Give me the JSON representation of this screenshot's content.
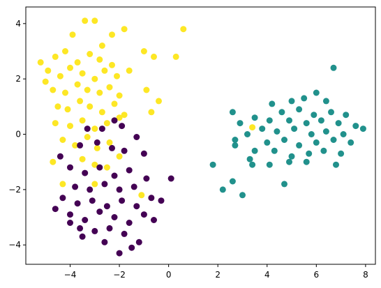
{
  "chart_data": {
    "type": "scatter",
    "title": "",
    "xlabel": "",
    "ylabel": "",
    "xlim": [
      -5.8,
      8.4
    ],
    "ylim": [
      -4.7,
      4.6
    ],
    "xticks": [
      -4,
      -2,
      0,
      2,
      4,
      6,
      8
    ],
    "yticks": [
      -4,
      -2,
      0,
      2,
      4
    ],
    "grid": false,
    "legend": "none",
    "series": [
      {
        "color": "#fde725",
        "points": [
          [
            -3.9,
            3.6
          ],
          [
            -3.4,
            4.1
          ],
          [
            -3.0,
            4.1
          ],
          [
            -2.7,
            3.2
          ],
          [
            -2.3,
            3.6
          ],
          [
            -1.8,
            3.8
          ],
          [
            -4.6,
            2.8
          ],
          [
            -4.2,
            3.0
          ],
          [
            -3.7,
            2.6
          ],
          [
            -3.2,
            2.9
          ],
          [
            -2.8,
            2.7
          ],
          [
            -2.3,
            2.5
          ],
          [
            -4.9,
            2.3
          ],
          [
            -4.4,
            2.1
          ],
          [
            -4.0,
            2.4
          ],
          [
            -3.5,
            2.2
          ],
          [
            -3.0,
            2.0
          ],
          [
            -2.6,
            2.3
          ],
          [
            -2.1,
            2.1
          ],
          [
            -1.6,
            2.3
          ],
          [
            -4.7,
            1.6
          ],
          [
            -4.2,
            1.5
          ],
          [
            -3.7,
            1.8
          ],
          [
            -3.3,
            1.6
          ],
          [
            -2.8,
            1.5
          ],
          [
            -2.4,
            1.7
          ],
          [
            -2.0,
            1.4
          ],
          [
            -4.5,
            1.0
          ],
          [
            -4.1,
            0.9
          ],
          [
            -3.6,
            1.2
          ],
          [
            -3.2,
            1.0
          ],
          [
            -2.7,
            0.8
          ],
          [
            -2.2,
            1.1
          ],
          [
            -1.8,
            0.7
          ],
          [
            -4.6,
            0.4
          ],
          [
            -4.0,
            0.3
          ],
          [
            -3.5,
            0.5
          ],
          [
            -3.0,
            0.2
          ],
          [
            -2.5,
            0.4
          ],
          [
            -2.0,
            0.6
          ],
          [
            -4.3,
            -0.2
          ],
          [
            -3.8,
            -0.4
          ],
          [
            -3.3,
            -0.1
          ],
          [
            -2.9,
            -0.5
          ],
          [
            -2.4,
            -0.3
          ],
          [
            -4.7,
            -1.0
          ],
          [
            -3.5,
            -0.9
          ],
          [
            -3.0,
            -1.1
          ],
          [
            -2.5,
            -1.2
          ],
          [
            -2.0,
            -0.8
          ],
          [
            -4.3,
            -1.8
          ],
          [
            -3.0,
            -1.8
          ],
          [
            -1.1,
            -2.2
          ],
          [
            -5.2,
            2.6
          ],
          [
            -5.0,
            1.9
          ],
          [
            -1.0,
            3.0
          ],
          [
            -0.6,
            2.8
          ],
          [
            -0.9,
            1.6
          ],
          [
            -0.4,
            1.2
          ],
          [
            -0.7,
            0.8
          ],
          [
            0.6,
            3.8
          ],
          [
            0.3,
            2.8
          ],
          [
            3.4,
            0.25
          ]
        ]
      },
      {
        "color": "#21918c",
        "points": [
          [
            6.7,
            2.4
          ],
          [
            6.0,
            1.5
          ],
          [
            5.5,
            1.3
          ],
          [
            5.0,
            1.2
          ],
          [
            6.4,
            1.2
          ],
          [
            4.2,
            1.1
          ],
          [
            2.6,
            0.8
          ],
          [
            4.6,
            0.8
          ],
          [
            5.3,
            0.9
          ],
          [
            5.9,
            0.7
          ],
          [
            6.6,
            0.8
          ],
          [
            7.2,
            0.7
          ],
          [
            3.5,
            0.6
          ],
          [
            4.1,
            0.5
          ],
          [
            4.9,
            0.5
          ],
          [
            5.6,
            0.4
          ],
          [
            6.2,
            0.5
          ],
          [
            6.9,
            0.4
          ],
          [
            7.6,
            0.3
          ],
          [
            7.9,
            0.2
          ],
          [
            2.9,
            0.4
          ],
          [
            3.8,
            0.2
          ],
          [
            4.4,
            0.1
          ],
          [
            5.1,
            0.2
          ],
          [
            5.8,
            0.0
          ],
          [
            6.4,
            0.1
          ],
          [
            7.1,
            0.0
          ],
          [
            3.2,
            0.0
          ],
          [
            2.7,
            -0.2
          ],
          [
            4.0,
            -0.3
          ],
          [
            4.7,
            -0.2
          ],
          [
            5.3,
            -0.4
          ],
          [
            6.0,
            -0.3
          ],
          [
            6.7,
            -0.2
          ],
          [
            7.4,
            -0.3
          ],
          [
            3.5,
            -0.6
          ],
          [
            4.3,
            -0.6
          ],
          [
            5.0,
            -0.8
          ],
          [
            5.7,
            -0.7
          ],
          [
            6.3,
            -0.6
          ],
          [
            7.0,
            -0.7
          ],
          [
            2.7,
            -0.4
          ],
          [
            4.9,
            -1.0
          ],
          [
            5.6,
            -1.0
          ],
          [
            6.8,
            -1.1
          ],
          [
            3.3,
            -0.9
          ],
          [
            4.1,
            -1.1
          ],
          [
            1.8,
            -1.1
          ],
          [
            3.4,
            -1.1
          ],
          [
            2.6,
            -1.7
          ],
          [
            2.2,
            -2.0
          ],
          [
            3.0,
            -2.2
          ],
          [
            4.7,
            -1.8
          ]
        ]
      },
      {
        "color": "#440154",
        "points": [
          [
            -3.3,
            0.2
          ],
          [
            -2.7,
            0.2
          ],
          [
            -2.2,
            0.5
          ],
          [
            -1.9,
            0.3
          ],
          [
            -3.6,
            -0.4
          ],
          [
            -2.9,
            -0.3
          ],
          [
            -2.3,
            -0.5
          ],
          [
            -1.8,
            -0.6
          ],
          [
            -4.0,
            -1.2
          ],
          [
            -3.4,
            -1.4
          ],
          [
            -2.8,
            -1.2
          ],
          [
            -2.2,
            -1.5
          ],
          [
            -1.6,
            -1.3
          ],
          [
            -1.0,
            -0.7
          ],
          [
            -3.8,
            -1.9
          ],
          [
            -3.2,
            -2.0
          ],
          [
            -2.6,
            -1.8
          ],
          [
            -2.0,
            -2.0
          ],
          [
            -1.4,
            -1.9
          ],
          [
            -0.9,
            -1.6
          ],
          [
            -4.3,
            -2.3
          ],
          [
            -3.7,
            -2.5
          ],
          [
            -3.1,
            -2.4
          ],
          [
            -2.5,
            -2.6
          ],
          [
            -1.9,
            -2.4
          ],
          [
            -1.3,
            -2.6
          ],
          [
            -0.7,
            -2.3
          ],
          [
            -4.0,
            -2.9
          ],
          [
            -3.4,
            -3.1
          ],
          [
            -2.8,
            -2.8
          ],
          [
            -2.2,
            -3.0
          ],
          [
            -1.6,
            -3.2
          ],
          [
            -1.0,
            -2.9
          ],
          [
            -3.6,
            -3.4
          ],
          [
            -3.0,
            -3.5
          ],
          [
            -2.4,
            -3.4
          ],
          [
            -1.8,
            -3.6
          ],
          [
            -4.0,
            -3.2
          ],
          [
            -2.6,
            -3.9
          ],
          [
            -2.0,
            -4.3
          ],
          [
            -1.5,
            -4.1
          ],
          [
            -4.6,
            -2.7
          ],
          [
            -4.4,
            -0.8
          ],
          [
            -1.3,
            -0.1
          ],
          [
            0.1,
            -1.6
          ],
          [
            -0.3,
            -2.4
          ],
          [
            -0.6,
            -3.1
          ],
          [
            -1.2,
            -3.9
          ],
          [
            -3.5,
            -3.7
          ]
        ]
      }
    ]
  }
}
